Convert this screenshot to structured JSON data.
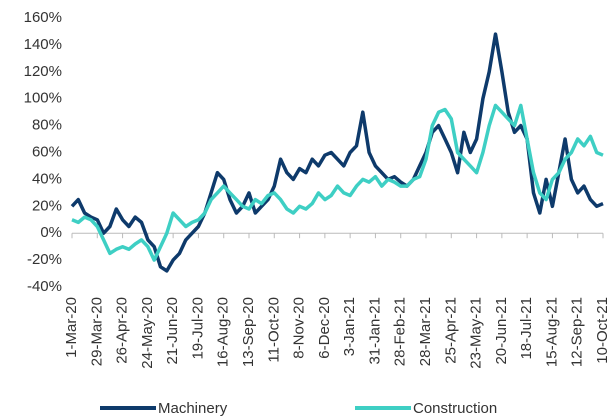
{
  "chart_data": {
    "type": "line",
    "categories": [
      "1-Mar-20",
      null,
      null,
      null,
      "29-Mar-20",
      null,
      null,
      null,
      "26-Apr-20",
      null,
      null,
      null,
      "24-May-20",
      null,
      null,
      null,
      "21-Jun-20",
      null,
      null,
      null,
      "19-Jul-20",
      null,
      null,
      null,
      "16-Aug-20",
      null,
      null,
      null,
      "13-Sep-20",
      null,
      null,
      null,
      "11-Oct-20",
      null,
      null,
      null,
      "8-Nov-20",
      null,
      null,
      null,
      "6-Dec-20",
      null,
      null,
      null,
      "3-Jan-21",
      null,
      null,
      null,
      "31-Jan-21",
      null,
      null,
      null,
      "28-Feb-21",
      null,
      null,
      null,
      "28-Mar-21",
      null,
      null,
      null,
      "25-Apr-21",
      null,
      null,
      null,
      "23-May-21",
      null,
      null,
      null,
      "20-Jun-21",
      null,
      null,
      null,
      "18-Jul-21",
      null,
      null,
      null,
      "15-Aug-21",
      null,
      null,
      null,
      "12-Sep-21",
      null,
      null,
      null,
      "10-Oct-21"
    ],
    "series": [
      {
        "name": "Machinery",
        "color": "#0e3a6b",
        "values": [
          20,
          25,
          15,
          12,
          10,
          0,
          5,
          18,
          10,
          5,
          12,
          8,
          -5,
          -10,
          -25,
          -28,
          -20,
          -15,
          -5,
          0,
          5,
          15,
          30,
          45,
          40,
          25,
          15,
          20,
          30,
          15,
          20,
          25,
          35,
          55,
          45,
          40,
          48,
          45,
          55,
          50,
          58,
          60,
          55,
          50,
          60,
          65,
          90,
          60,
          50,
          45,
          40,
          42,
          38,
          35,
          40,
          50,
          60,
          75,
          80,
          70,
          60,
          45,
          75,
          60,
          70,
          100,
          120,
          148,
          120,
          90,
          75,
          80,
          70,
          30,
          15,
          40,
          20,
          45,
          70,
          40,
          30,
          35,
          25,
          20,
          22
        ]
      },
      {
        "name": "Construction",
        "color": "#3ecfc4",
        "values": [
          10,
          8,
          12,
          10,
          5,
          -5,
          -15,
          -12,
          -10,
          -12,
          -8,
          -5,
          -10,
          -20,
          -10,
          0,
          15,
          10,
          5,
          8,
          10,
          15,
          25,
          30,
          35,
          30,
          25,
          20,
          18,
          25,
          22,
          28,
          30,
          25,
          18,
          15,
          20,
          18,
          22,
          30,
          25,
          28,
          35,
          30,
          28,
          35,
          40,
          38,
          42,
          35,
          40,
          38,
          35,
          35,
          40,
          42,
          55,
          80,
          90,
          92,
          85,
          60,
          55,
          50,
          45,
          60,
          80,
          95,
          90,
          85,
          80,
          95,
          70,
          45,
          30,
          25,
          40,
          45,
          55,
          60,
          70,
          65,
          72,
          60,
          58
        ]
      }
    ],
    "ylim": [
      -40,
      160
    ],
    "yticks": [
      {
        "value": -40,
        "label": "-40%"
      },
      {
        "value": -20,
        "label": "-20%"
      },
      {
        "value": 0,
        "label": "0%"
      },
      {
        "value": 20,
        "label": "20%"
      },
      {
        "value": 40,
        "label": "40%"
      },
      {
        "value": 60,
        "label": "60%"
      },
      {
        "value": 80,
        "label": "80%"
      },
      {
        "value": 100,
        "label": "100%"
      },
      {
        "value": 120,
        "label": "120%"
      },
      {
        "value": 140,
        "label": "140%"
      },
      {
        "value": 160,
        "label": "160%"
      }
    ],
    "grid": false,
    "legend": "bottom"
  }
}
